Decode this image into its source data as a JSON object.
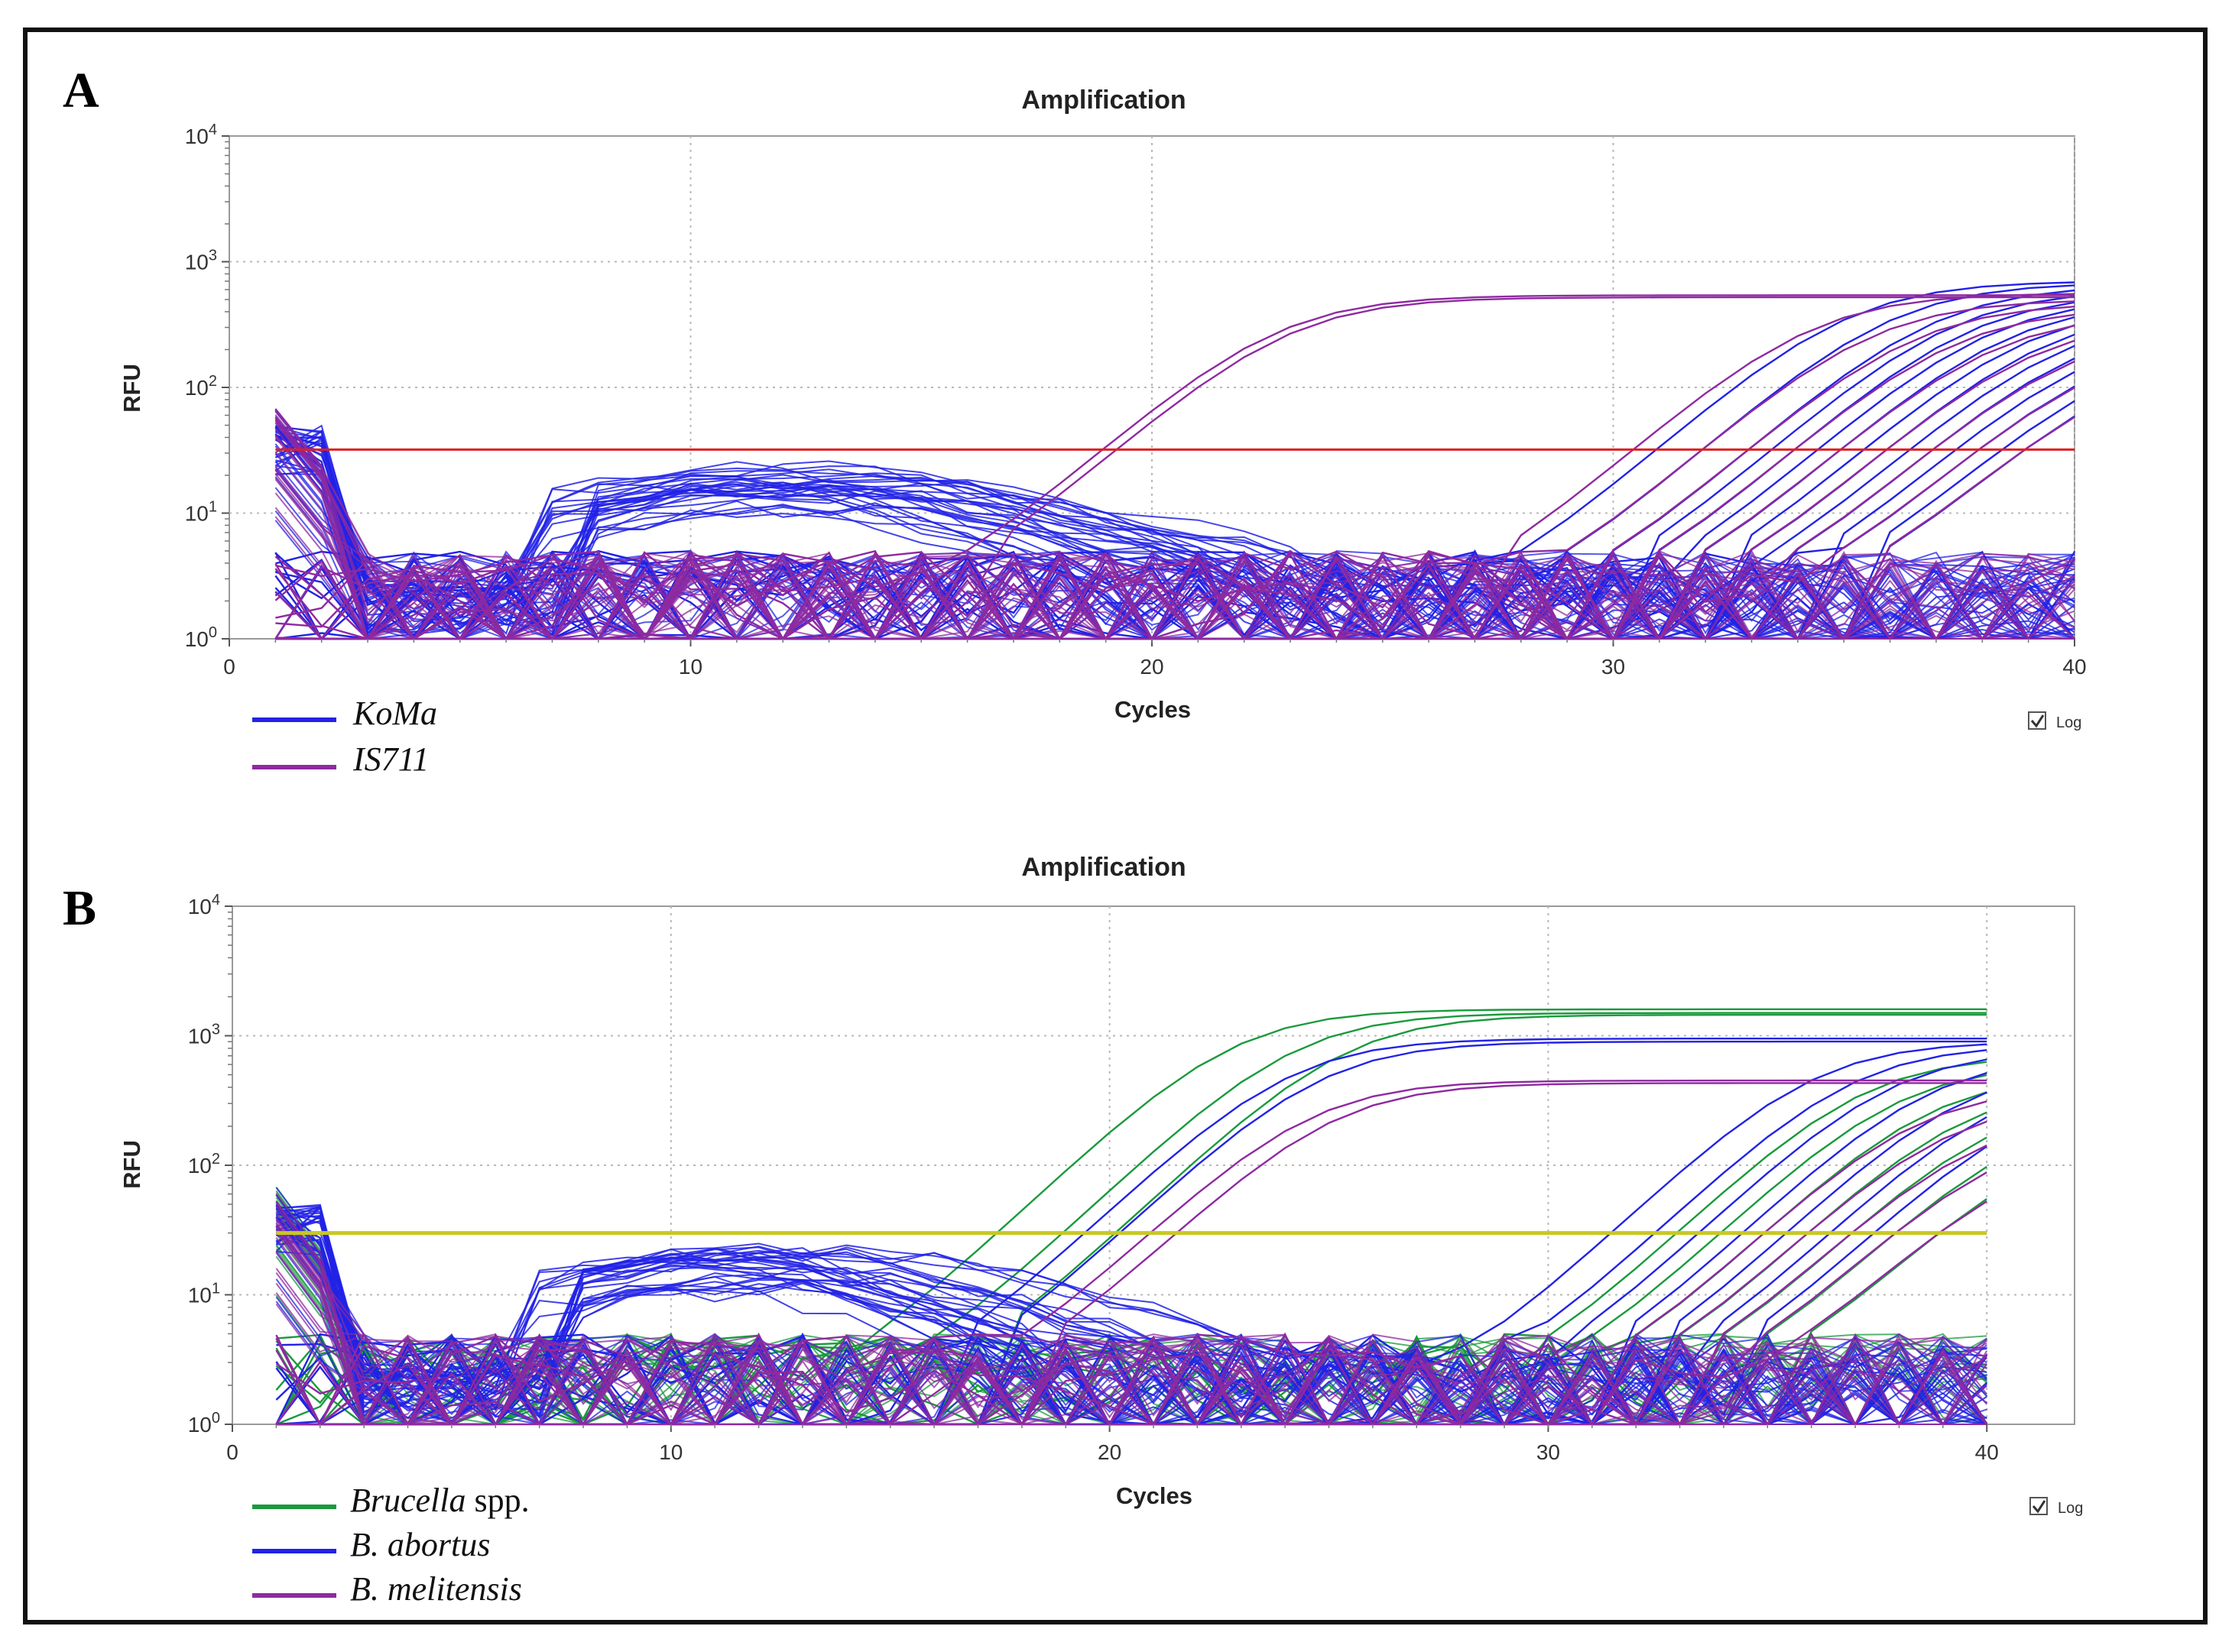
{
  "panels": {
    "A": {
      "letter": "A",
      "log_label": "Log"
    },
    "B": {
      "letter": "B",
      "log_label": "Log"
    }
  },
  "colors": {
    "koma": "#2222e6",
    "is711": "#8e2aa0",
    "brucella_spp": "#1a9a3c",
    "b_abortus": "#2222e6",
    "b_melitensis": "#8e2aa0",
    "threshold_A": "#e02020",
    "threshold_B": "#c8c820"
  },
  "legends": {
    "A": [
      {
        "italic": "KoMa",
        "rest": "",
        "color": "#2222e6"
      },
      {
        "italic": "IS711",
        "rest": "",
        "color": "#8e2aa0"
      }
    ],
    "B": [
      {
        "italic": "Brucella",
        "rest": " spp.",
        "color": "#1a9a3c"
      },
      {
        "italic": "B. abortus",
        "rest": "",
        "color": "#2222e6"
      },
      {
        "italic": "B. melitensis",
        "rest": "",
        "color": "#8e2aa0"
      }
    ]
  },
  "chart_data": [
    {
      "type": "line",
      "panel": "A",
      "title": "Amplification",
      "xlabel": "Cycles",
      "ylabel": "RFU",
      "xlim": [
        0,
        40
      ],
      "ylim": [
        1,
        10000
      ],
      "y_scale": "log",
      "x_ticks": [
        0,
        10,
        20,
        30,
        40
      ],
      "y_ticks": [
        1,
        10,
        100,
        1000,
        10000
      ],
      "grid": true,
      "legend_position": "bottom-left",
      "threshold": 32,
      "series_groups": [
        {
          "name": "KoMa",
          "color": "#2222e6",
          "curves": [
            {
              "ct": 31.0,
              "plateau": 700
            },
            {
              "ct": 32.0,
              "plateau": 680
            },
            {
              "ct": 33.0,
              "plateau": 650
            },
            {
              "ct": 33.5,
              "plateau": 600
            },
            {
              "ct": 34.0,
              "plateau": 560
            },
            {
              "ct": 34.5,
              "plateau": 520
            },
            {
              "ct": 35.0,
              "plateau": 480
            },
            {
              "ct": 35.5,
              "plateau": 450
            },
            {
              "ct": 36.0,
              "plateau": 420
            },
            {
              "ct": 36.5,
              "plateau": 380
            },
            {
              "ct": 37.0,
              "plateau": 340
            },
            {
              "ct": 37.5,
              "plateau": 300
            },
            {
              "ct": 38.0,
              "plateau": 260
            },
            {
              "ct": 38.5,
              "plateau": 230
            },
            {
              "ct": 39.0,
              "plateau": 200
            }
          ]
        },
        {
          "name": "IS711",
          "color": "#8e2aa0",
          "curves": [
            {
              "ct": 19.0,
              "plateau": 540
            },
            {
              "ct": 19.3,
              "plateau": 520
            },
            {
              "ct": 30.5,
              "plateau": 560
            },
            {
              "ct": 32.0,
              "plateau": 500
            },
            {
              "ct": 33.0,
              "plateau": 470
            },
            {
              "ct": 34.0,
              "plateau": 430
            },
            {
              "ct": 35.0,
              "plateau": 390
            },
            {
              "ct": 36.0,
              "plateau": 350
            },
            {
              "ct": 37.0,
              "plateau": 300
            },
            {
              "ct": 38.0,
              "plateau": 240
            },
            {
              "ct": 39.0,
              "plateau": 180
            }
          ]
        }
      ]
    },
    {
      "type": "line",
      "panel": "B",
      "title": "Amplification",
      "xlabel": "Cycles",
      "ylabel": "RFU",
      "xlim": [
        0,
        40
      ],
      "ylim": [
        1,
        10000
      ],
      "y_scale": "log",
      "x_ticks": [
        0,
        10,
        20,
        30,
        40
      ],
      "y_ticks": [
        1,
        10,
        100,
        1000,
        10000
      ],
      "grid": true,
      "legend_position": "bottom-left",
      "threshold": 30,
      "series_groups": [
        {
          "name": "Brucella spp.",
          "color": "#1a9a3c",
          "curves": [
            {
              "ct": 17.5,
              "plateau": 1600
            },
            {
              "ct": 19.0,
              "plateau": 1500
            },
            {
              "ct": 20.2,
              "plateau": 1450
            },
            {
              "ct": 33.0,
              "plateau": 700
            },
            {
              "ct": 34.0,
              "plateau": 600
            },
            {
              "ct": 35.0,
              "plateau": 500
            },
            {
              "ct": 36.0,
              "plateau": 420
            },
            {
              "ct": 37.0,
              "plateau": 340
            },
            {
              "ct": 38.0,
              "plateau": 260
            },
            {
              "ct": 39.0,
              "plateau": 180
            }
          ]
        },
        {
          "name": "B. abortus",
          "color": "#2222e6",
          "curves": [
            {
              "ct": 19.5,
              "plateau": 950
            },
            {
              "ct": 20.3,
              "plateau": 900
            },
            {
              "ct": 31.5,
              "plateau": 900
            },
            {
              "ct": 32.5,
              "plateau": 850
            },
            {
              "ct": 33.5,
              "plateau": 780
            },
            {
              "ct": 34.5,
              "plateau": 700
            },
            {
              "ct": 35.5,
              "plateau": 600
            },
            {
              "ct": 36.5,
              "plateau": 500
            },
            {
              "ct": 37.5,
              "plateau": 400
            }
          ]
        },
        {
          "name": "B. melitensis",
          "color": "#8e2aa0",
          "curves": [
            {
              "ct": 21.0,
              "plateau": 450
            },
            {
              "ct": 21.6,
              "plateau": 430
            },
            {
              "ct": 35.0,
              "plateau": 400
            },
            {
              "ct": 36.0,
              "plateau": 320
            },
            {
              "ct": 37.0,
              "plateau": 250
            },
            {
              "ct": 38.0,
              "plateau": 190
            },
            {
              "ct": 39.0,
              "plateau": 140
            }
          ]
        }
      ]
    }
  ]
}
